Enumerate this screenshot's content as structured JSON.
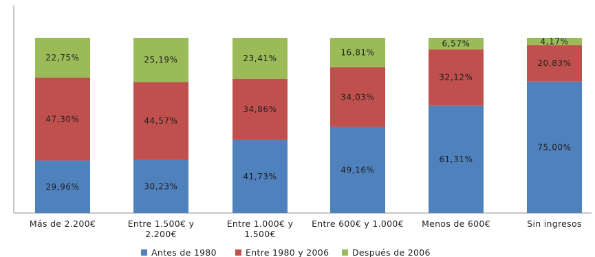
{
  "chart_data": {
    "type": "bar",
    "stacked": true,
    "percent_stacked": true,
    "categories": [
      [
        "Más de 2.200€"
      ],
      [
        "Entre 1.500€ y",
        "2.200€"
      ],
      [
        "Entre 1.000€ y",
        "1.500€"
      ],
      [
        "Entre 600€ y 1.000€"
      ],
      [
        "Menos de 600€"
      ],
      [
        "Sin ingresos"
      ]
    ],
    "series": [
      {
        "name": "Antes de 1980",
        "color": "#4f81bd",
        "values": [
          29.96,
          30.23,
          41.73,
          49.16,
          61.31,
          75.0
        ],
        "labels": [
          "29,96%",
          "30,23%",
          "41,73%",
          "49,16%",
          "61,31%",
          "75,00%"
        ]
      },
      {
        "name": "Entre 1980 y 2006",
        "color": "#c0504d",
        "values": [
          47.3,
          44.57,
          34.86,
          34.03,
          32.12,
          20.83
        ],
        "labels": [
          "47,30%",
          "44,57%",
          "34,86%",
          "34,03%",
          "32,12%",
          "20,83%"
        ]
      },
      {
        "name": "Después de 2006",
        "color": "#9bbb59",
        "values": [
          22.75,
          25.19,
          23.41,
          16.81,
          6.57,
          4.17
        ],
        "labels": [
          "22,75%",
          "25,19%",
          "23,41%",
          "16,81%",
          "6,57%",
          "4,17%"
        ]
      }
    ],
    "ylim": [
      0,
      100
    ],
    "grid": false,
    "legend": "bottom"
  }
}
